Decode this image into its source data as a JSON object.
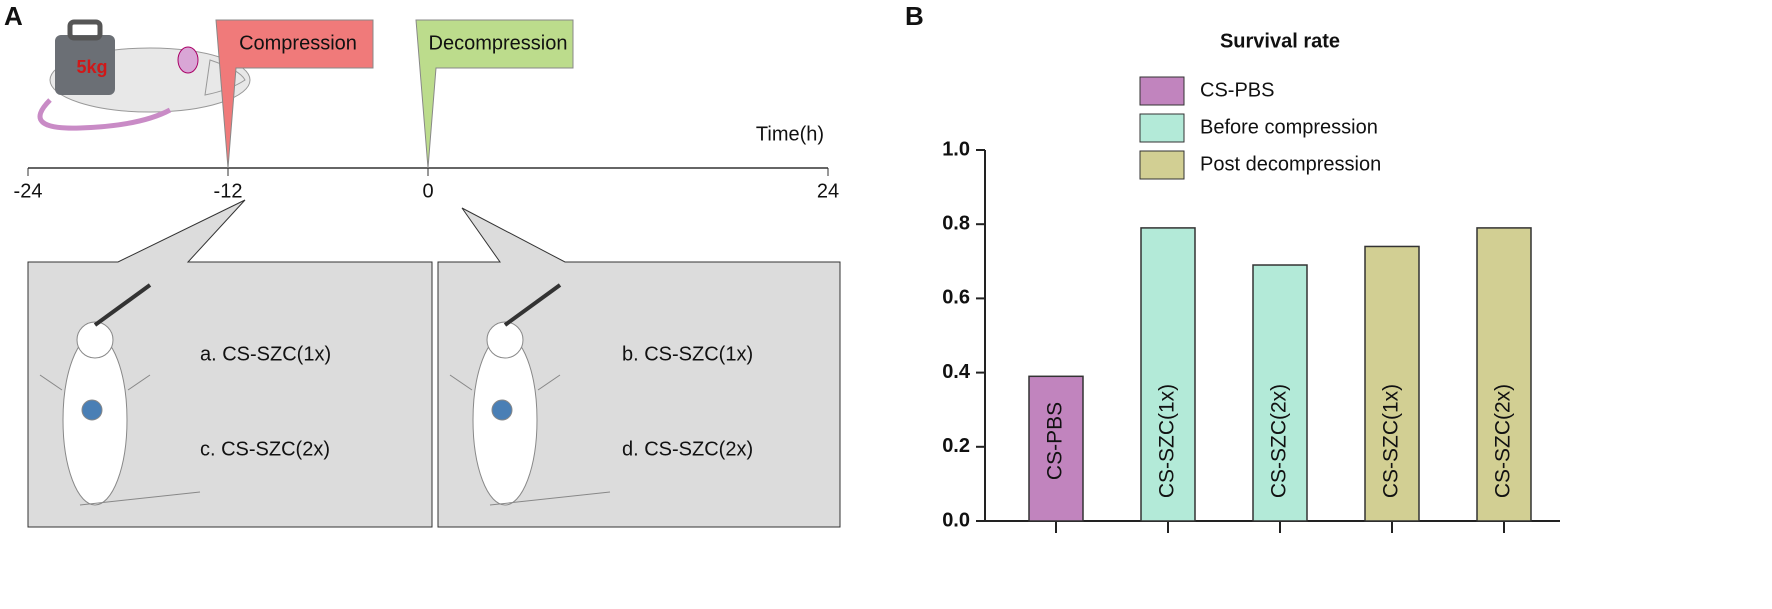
{
  "panel_a": {
    "label": "A",
    "weight": "5kg",
    "timeline": {
      "xlabel": "Time(h)",
      "xlim": [
        -24,
        24
      ],
      "xticks": [
        -24,
        -12,
        0,
        24
      ]
    },
    "events": [
      {
        "label": "Compression",
        "time": -12,
        "color": "#f07a7a"
      },
      {
        "label": "Decompression",
        "time": 0,
        "color": "#bcdc8c"
      }
    ],
    "boxes": [
      {
        "items": [
          "a. CS-SZC(1x)",
          "c. CS-SZC(2x)"
        ]
      },
      {
        "items": [
          "b. CS-SZC(1x)",
          "d. CS-SZC(2x)"
        ]
      }
    ]
  },
  "chart_data": {
    "type": "bar",
    "label": "B",
    "title": "Survival rate",
    "categories": [
      "CS-PBS",
      "CS-SZC(1x)",
      "CS-SZC(2x)",
      "CS-SZC(1x)",
      "CS-SZC(2x)"
    ],
    "series": [
      {
        "name": "CS-PBS",
        "color": "#c184be",
        "values": [
          0.39,
          null,
          null,
          null,
          null
        ]
      },
      {
        "name": "Before compression",
        "color": "#b3ead8",
        "values": [
          null,
          0.79,
          0.69,
          null,
          null
        ]
      },
      {
        "name": "Post decompression",
        "color": "#d2cf93",
        "values": [
          null,
          null,
          null,
          0.74,
          0.79
        ]
      }
    ],
    "ylim": [
      0,
      1
    ],
    "yticks": [
      {
        "value": 0,
        "label": "0.0"
      },
      0.2,
      0.4,
      0.6,
      0.8,
      {
        "value": 1,
        "label": "1.0"
      }
    ]
  }
}
